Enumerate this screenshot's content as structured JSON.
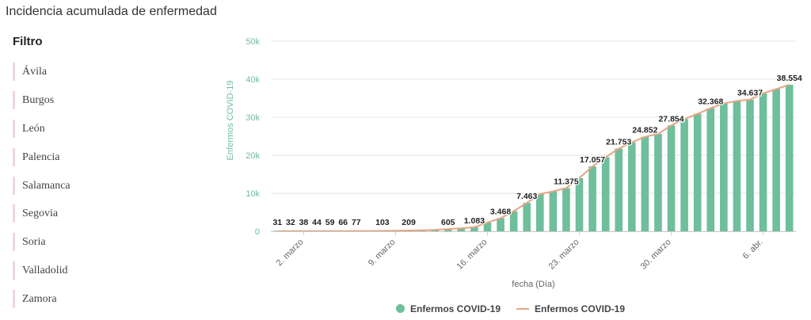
{
  "page": {
    "title": "Incidencia acumulada de enfermedad"
  },
  "filter": {
    "title": "Filtro",
    "items": [
      "Ávila",
      "Burgos",
      "León",
      "Palencia",
      "Salamanca",
      "Segovia",
      "Soria",
      "Valladolid",
      "Zamora"
    ]
  },
  "colors": {
    "bar": "#6fbe9c",
    "line": "#e3a683",
    "grid": "#e6e6e6",
    "axis_text": "#6fbe9c"
  },
  "legend": {
    "bars": "Enfermos COVID-19",
    "line": "Enfermos COVID-19"
  },
  "chart_data": {
    "type": "bar",
    "title": "",
    "xlabel": "fecha (Día)",
    "ylabel": "Enfermos COVID-19",
    "ylim": [
      0,
      50000
    ],
    "yticks": [
      "0",
      "10k",
      "20k",
      "30k",
      "40k",
      "50k"
    ],
    "ytick_values": [
      0,
      10000,
      20000,
      30000,
      40000,
      50000
    ],
    "xtick_labels": [
      {
        "label": "2. marzo",
        "index": 2
      },
      {
        "label": "9. marzo",
        "index": 9
      },
      {
        "label": "16. marzo",
        "index": 16
      },
      {
        "label": "23. marzo",
        "index": 23
      },
      {
        "label": "30. marzo",
        "index": 30
      },
      {
        "label": "6. abr.",
        "index": 37
      }
    ],
    "values": [
      31,
      32,
      38,
      44,
      59,
      66,
      77,
      90,
      103,
      150,
      209,
      280,
      400,
      605,
      800,
      1083,
      2300,
      3468,
      5300,
      7463,
      9800,
      10500,
      11375,
      14000,
      17057,
      19500,
      21753,
      23400,
      24852,
      25600,
      27854,
      29500,
      30900,
      32368,
      33600,
      34300,
      34637,
      36300,
      37400,
      38554
    ],
    "data_labels": [
      {
        "index": 0,
        "text": "31"
      },
      {
        "index": 1,
        "text": "32"
      },
      {
        "index": 2,
        "text": "38"
      },
      {
        "index": 3,
        "text": "44"
      },
      {
        "index": 4,
        "text": "59"
      },
      {
        "index": 5,
        "text": "66"
      },
      {
        "index": 6,
        "text": "77"
      },
      {
        "index": 8,
        "text": "103"
      },
      {
        "index": 10,
        "text": "209"
      },
      {
        "index": 13,
        "text": "605"
      },
      {
        "index": 15,
        "text": "1.083"
      },
      {
        "index": 17,
        "text": "3.468"
      },
      {
        "index": 19,
        "text": "7.463"
      },
      {
        "index": 22,
        "text": "11.375"
      },
      {
        "index": 24,
        "text": "17.057"
      },
      {
        "index": 26,
        "text": "21.753"
      },
      {
        "index": 28,
        "text": "24.852"
      },
      {
        "index": 30,
        "text": "27.854"
      },
      {
        "index": 33,
        "text": "32.368"
      },
      {
        "index": 36,
        "text": "34.637"
      },
      {
        "index": 39,
        "text": "38.554"
      }
    ]
  }
}
